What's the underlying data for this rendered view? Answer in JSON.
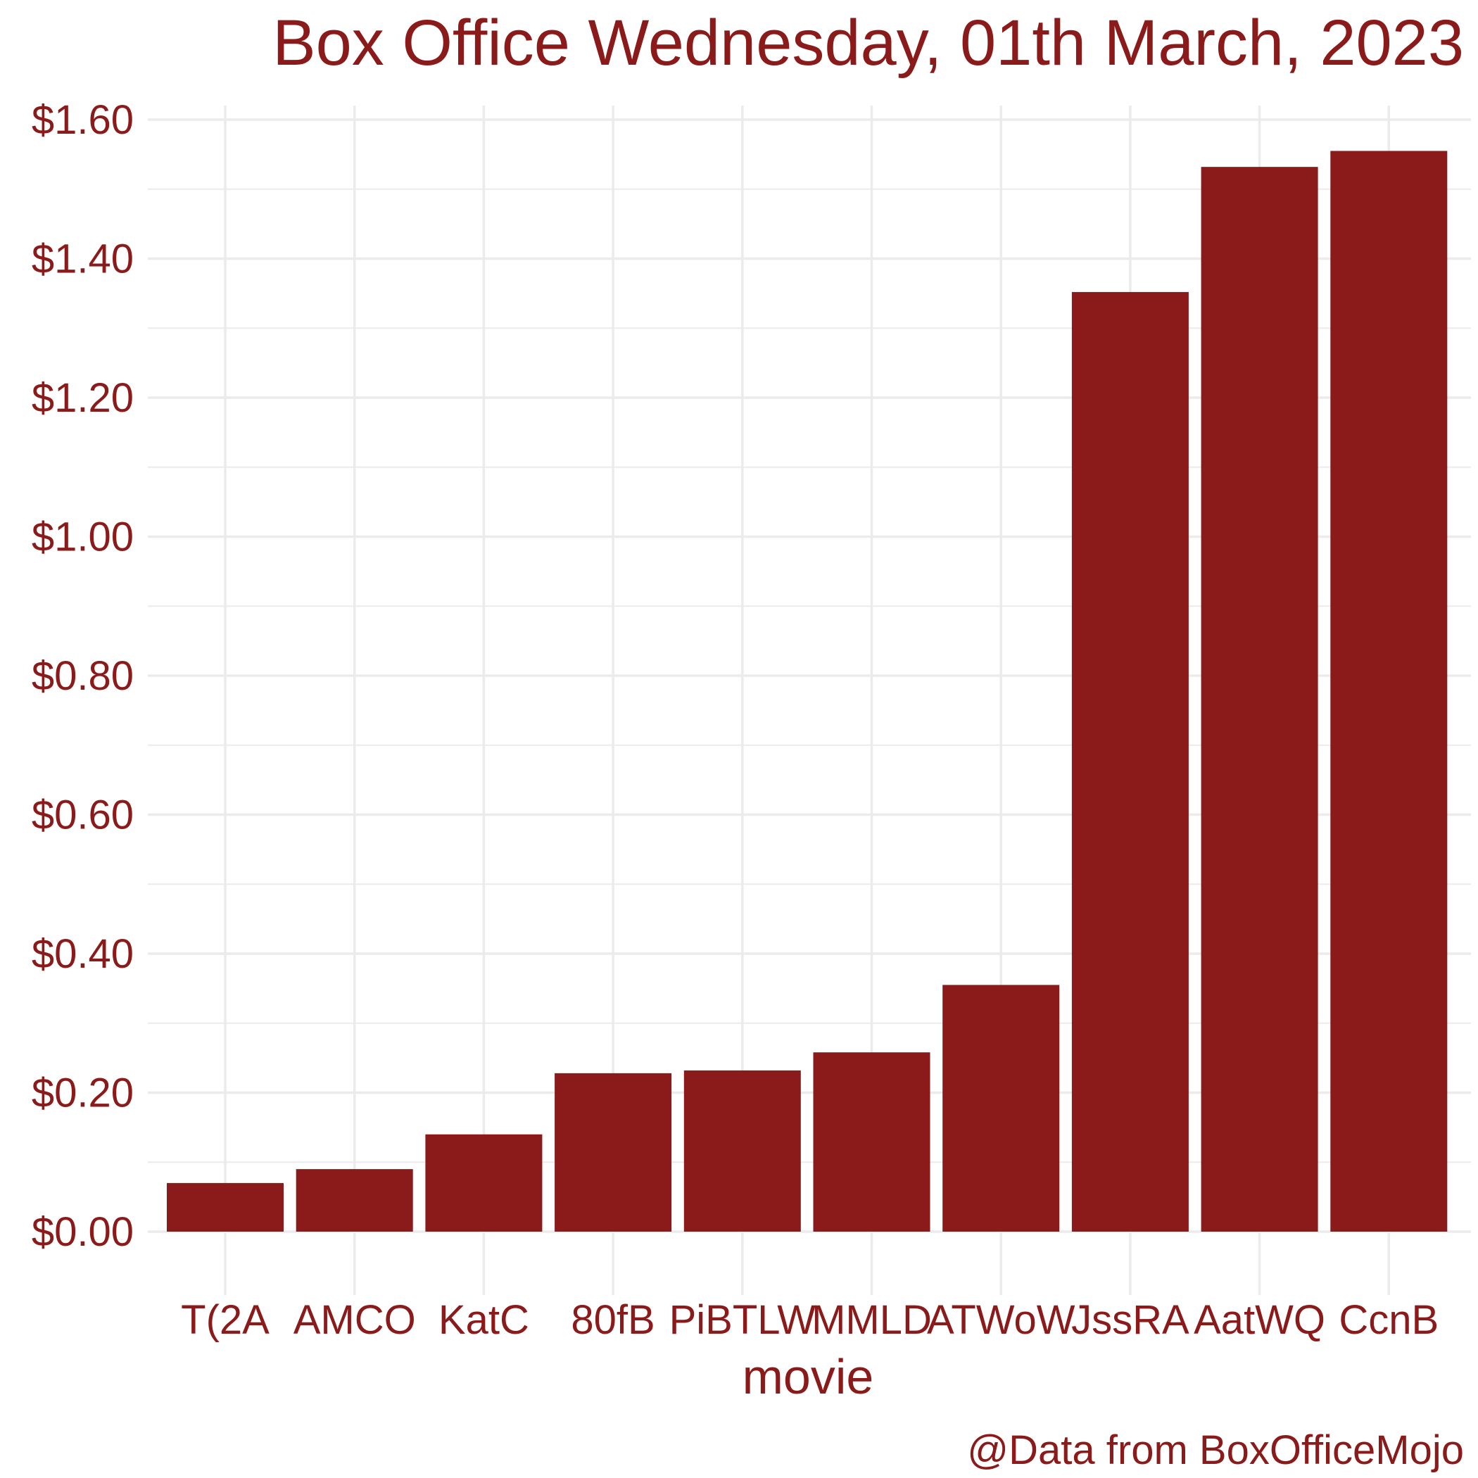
{
  "chart_data": {
    "type": "bar",
    "title": "Box Office Wednesday, 01th March, 2023",
    "xlabel": "movie",
    "ylabel": "",
    "caption": "@Data from BoxOfficeMojo",
    "categories": [
      "T(2A",
      "AMCO",
      "KatC",
      "80fB",
      "PiBTLW",
      "MMLD",
      "ATWoW",
      "JssRA",
      "AatWQ",
      "CcnB"
    ],
    "values": [
      0.07,
      0.09,
      0.14,
      0.228,
      0.232,
      0.258,
      0.355,
      1.352,
      1.532,
      1.555
    ],
    "ylim": [
      -0.07,
      1.65
    ],
    "yticks": [
      0,
      0.2,
      0.4,
      0.6,
      0.8,
      1.0,
      1.2,
      1.4,
      1.6
    ],
    "ytick_labels": [
      "$0.00",
      "$0.20",
      "$0.40",
      "$0.60",
      "$0.80",
      "$1.00",
      "$1.20",
      "$1.40",
      "$1.60"
    ],
    "grid": true,
    "colors": {
      "bar": "#8b1a1a",
      "text": "#8b1a1a",
      "grid": "#ebebeb"
    }
  }
}
